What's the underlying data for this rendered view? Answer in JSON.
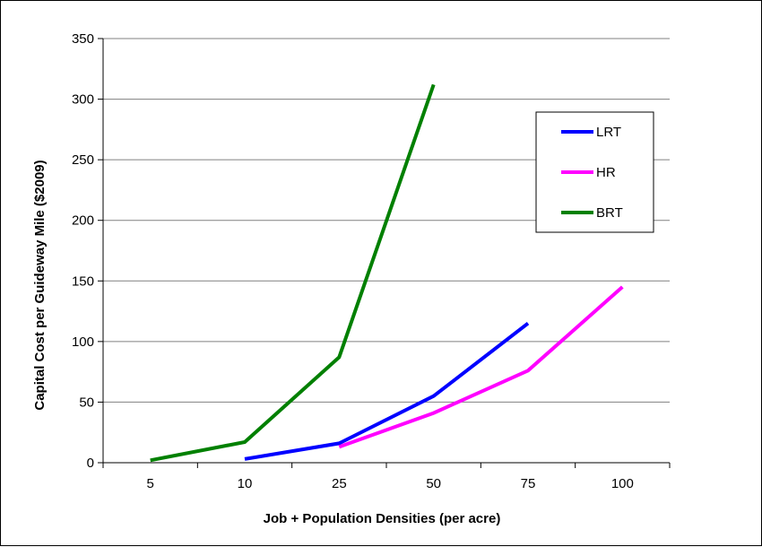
{
  "chart_data": {
    "type": "line",
    "title": "",
    "xlabel": "Job + Population Densities (per acre)",
    "ylabel": "Capital Cost per Guideway Mile ($2009)",
    "categories": [
      "5",
      "10",
      "25",
      "50",
      "75",
      "100"
    ],
    "ylim": [
      0,
      350
    ],
    "yticks": [
      0,
      50,
      100,
      150,
      200,
      250,
      300,
      350
    ],
    "grid": "horizontal",
    "legend_position": "right",
    "series": [
      {
        "name": "LRT",
        "color": "#0000ff",
        "values": [
          null,
          3,
          16,
          55,
          115,
          null
        ]
      },
      {
        "name": "HR",
        "color": "#ff00ff",
        "values": [
          null,
          null,
          13,
          41,
          76,
          145
        ]
      },
      {
        "name": "BRT",
        "color": "#008000",
        "values": [
          2,
          17,
          87,
          312,
          null,
          null
        ]
      }
    ]
  }
}
